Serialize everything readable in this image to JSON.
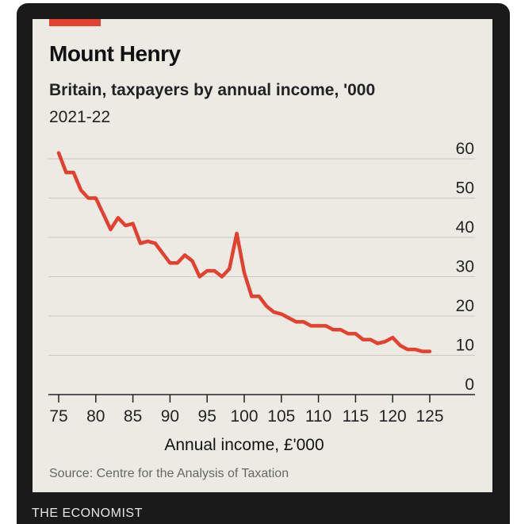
{
  "chart_data": {
    "type": "line",
    "title": "Mount Henry",
    "subtitle": "Britain, taxpayers by annual income, '000",
    "period": "2021-22",
    "xlabel": "Annual income, £'000",
    "ylabel": "",
    "xlim": [
      75,
      125
    ],
    "ylim": [
      0,
      60
    ],
    "xticks": [
      75,
      80,
      85,
      90,
      95,
      100,
      105,
      110,
      115,
      120,
      125
    ],
    "yticks": [
      0,
      10,
      20,
      30,
      40,
      50,
      60
    ],
    "ytick_labels": [
      "0",
      "10",
      "20",
      "30",
      "40",
      "50",
      "60"
    ],
    "y_axis_side": "right",
    "grid": "horizontal",
    "source": "Source: Centre for the Analysis of Taxation",
    "color": "#e3402f",
    "series": [
      {
        "x": [
          75,
          76,
          77,
          78,
          79,
          80,
          81,
          82,
          83,
          84,
          85,
          86,
          87,
          88,
          89,
          90,
          91,
          92,
          93,
          94,
          95,
          96,
          97,
          98,
          99,
          100,
          101,
          102,
          103,
          104,
          105,
          106,
          107,
          108,
          109,
          110,
          111,
          112,
          113,
          114,
          115,
          116,
          117,
          118,
          119,
          120,
          121,
          122,
          123,
          124,
          125
        ],
        "values": [
          61.5,
          56.5,
          56.5,
          52,
          50,
          50,
          46,
          42,
          45,
          43,
          43.5,
          38.5,
          39,
          38.5,
          36,
          33.5,
          33.5,
          35.5,
          34,
          30,
          31.5,
          31.5,
          30,
          32,
          41,
          31,
          25,
          25,
          22.5,
          21,
          20.5,
          19.5,
          18.5,
          18.5,
          17.5,
          17.5,
          17.5,
          16.5,
          16.5,
          15.5,
          15.5,
          14,
          14,
          13,
          13.5,
          14.5,
          12.5,
          11.5,
          11.5,
          11,
          11
        ]
      }
    ]
  },
  "accent_color": "#e3402f",
  "brand": "THE ECONOMIST"
}
